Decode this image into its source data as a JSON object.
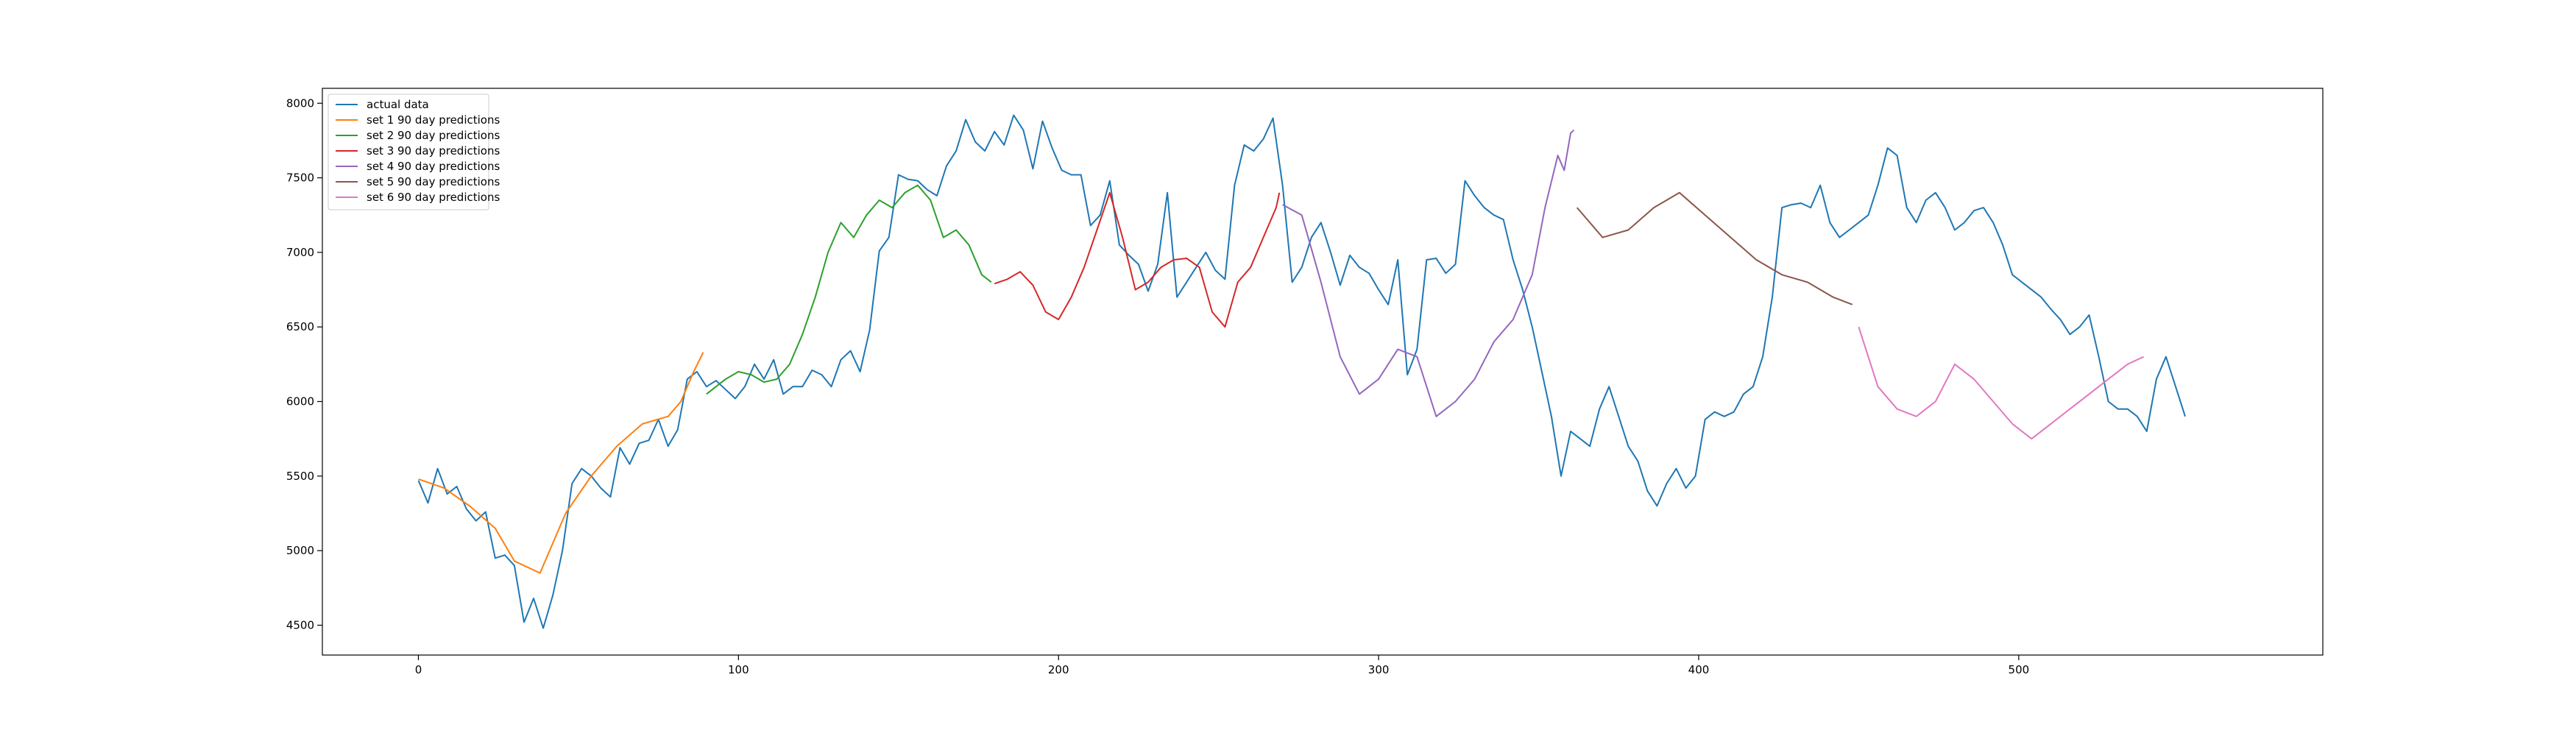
{
  "chart_data": {
    "type": "line",
    "title": "",
    "xlabel": "",
    "ylabel": "",
    "xlim": [
      -30,
      595
    ],
    "ylim": [
      4300,
      8100
    ],
    "xticks": [
      0,
      100,
      200,
      300,
      400,
      500
    ],
    "yticks": [
      4500,
      5000,
      5500,
      6000,
      6500,
      7000,
      7500,
      8000
    ],
    "legend_position": "top-left",
    "grid": false,
    "series": [
      {
        "name": "actual data",
        "color": "#1f77b4",
        "points": [
          [
            0,
            5470
          ],
          [
            3,
            5320
          ],
          [
            6,
            5550
          ],
          [
            9,
            5380
          ],
          [
            12,
            5430
          ],
          [
            15,
            5280
          ],
          [
            18,
            5200
          ],
          [
            21,
            5260
          ],
          [
            24,
            4950
          ],
          [
            27,
            4970
          ],
          [
            30,
            4900
          ],
          [
            33,
            4520
          ],
          [
            36,
            4680
          ],
          [
            39,
            4480
          ],
          [
            42,
            4700
          ],
          [
            45,
            5000
          ],
          [
            48,
            5450
          ],
          [
            51,
            5550
          ],
          [
            54,
            5500
          ],
          [
            57,
            5420
          ],
          [
            60,
            5360
          ],
          [
            63,
            5690
          ],
          [
            66,
            5580
          ],
          [
            69,
            5720
          ],
          [
            72,
            5740
          ],
          [
            75,
            5880
          ],
          [
            78,
            5700
          ],
          [
            81,
            5810
          ],
          [
            84,
            6150
          ],
          [
            87,
            6200
          ],
          [
            90,
            6100
          ],
          [
            93,
            6140
          ],
          [
            96,
            6080
          ],
          [
            99,
            6020
          ],
          [
            102,
            6100
          ],
          [
            105,
            6250
          ],
          [
            108,
            6150
          ],
          [
            111,
            6280
          ],
          [
            114,
            6050
          ],
          [
            117,
            6100
          ],
          [
            120,
            6100
          ],
          [
            123,
            6210
          ],
          [
            126,
            6180
          ],
          [
            129,
            6100
          ],
          [
            132,
            6280
          ],
          [
            135,
            6340
          ],
          [
            138,
            6200
          ],
          [
            141,
            6480
          ],
          [
            144,
            7010
          ],
          [
            147,
            7100
          ],
          [
            150,
            7520
          ],
          [
            153,
            7490
          ],
          [
            156,
            7480
          ],
          [
            159,
            7420
          ],
          [
            162,
            7380
          ],
          [
            165,
            7580
          ],
          [
            168,
            7680
          ],
          [
            171,
            7890
          ],
          [
            174,
            7740
          ],
          [
            177,
            7680
          ],
          [
            180,
            7810
          ],
          [
            183,
            7720
          ],
          [
            186,
            7920
          ],
          [
            189,
            7820
          ],
          [
            192,
            7560
          ],
          [
            195,
            7880
          ],
          [
            198,
            7700
          ],
          [
            201,
            7550
          ],
          [
            204,
            7520
          ],
          [
            207,
            7520
          ],
          [
            210,
            7180
          ],
          [
            213,
            7250
          ],
          [
            216,
            7480
          ],
          [
            219,
            7050
          ],
          [
            222,
            6980
          ],
          [
            225,
            6920
          ],
          [
            228,
            6740
          ],
          [
            231,
            6920
          ],
          [
            234,
            7400
          ],
          [
            237,
            6700
          ],
          [
            240,
            6800
          ],
          [
            243,
            6900
          ],
          [
            246,
            7000
          ],
          [
            249,
            6880
          ],
          [
            252,
            6820
          ],
          [
            255,
            7450
          ],
          [
            258,
            7720
          ],
          [
            261,
            7680
          ],
          [
            264,
            7760
          ],
          [
            267,
            7900
          ],
          [
            270,
            7450
          ],
          [
            273,
            6800
          ],
          [
            276,
            6900
          ],
          [
            279,
            7100
          ],
          [
            282,
            7200
          ],
          [
            285,
            7000
          ],
          [
            288,
            6780
          ],
          [
            291,
            6980
          ],
          [
            294,
            6900
          ],
          [
            297,
            6860
          ],
          [
            300,
            6750
          ],
          [
            303,
            6650
          ],
          [
            306,
            6950
          ],
          [
            309,
            6180
          ],
          [
            312,
            6350
          ],
          [
            315,
            6950
          ],
          [
            318,
            6960
          ],
          [
            321,
            6860
          ],
          [
            324,
            6920
          ],
          [
            327,
            7480
          ],
          [
            330,
            7380
          ],
          [
            333,
            7300
          ],
          [
            336,
            7250
          ],
          [
            339,
            7220
          ],
          [
            342,
            6950
          ],
          [
            345,
            6750
          ],
          [
            348,
            6500
          ],
          [
            351,
            6200
          ],
          [
            354,
            5900
          ],
          [
            357,
            5500
          ],
          [
            360,
            5800
          ],
          [
            363,
            5750
          ],
          [
            366,
            5700
          ],
          [
            369,
            5950
          ],
          [
            372,
            6100
          ],
          [
            375,
            5900
          ],
          [
            378,
            5700
          ],
          [
            381,
            5600
          ],
          [
            384,
            5400
          ],
          [
            387,
            5300
          ],
          [
            390,
            5450
          ],
          [
            393,
            5550
          ],
          [
            396,
            5420
          ],
          [
            399,
            5500
          ],
          [
            402,
            5880
          ],
          [
            405,
            5930
          ],
          [
            408,
            5900
          ],
          [
            411,
            5930
          ],
          [
            414,
            6050
          ],
          [
            417,
            6100
          ],
          [
            420,
            6300
          ],
          [
            423,
            6700
          ],
          [
            426,
            7300
          ],
          [
            429,
            7320
          ],
          [
            432,
            7330
          ],
          [
            435,
            7300
          ],
          [
            438,
            7450
          ],
          [
            441,
            7200
          ],
          [
            444,
            7100
          ],
          [
            447,
            7150
          ],
          [
            450,
            7200
          ],
          [
            453,
            7250
          ],
          [
            456,
            7450
          ],
          [
            459,
            7700
          ],
          [
            462,
            7650
          ],
          [
            465,
            7300
          ],
          [
            468,
            7200
          ],
          [
            471,
            7350
          ],
          [
            474,
            7400
          ],
          [
            477,
            7300
          ],
          [
            480,
            7150
          ],
          [
            483,
            7200
          ],
          [
            486,
            7280
          ],
          [
            489,
            7300
          ],
          [
            492,
            7200
          ],
          [
            495,
            7050
          ],
          [
            498,
            6850
          ],
          [
            501,
            6800
          ],
          [
            504,
            6750
          ],
          [
            507,
            6700
          ],
          [
            510,
            6620
          ],
          [
            513,
            6550
          ],
          [
            516,
            6450
          ],
          [
            519,
            6500
          ],
          [
            522,
            6580
          ],
          [
            525,
            6300
          ],
          [
            528,
            6000
          ],
          [
            531,
            5950
          ],
          [
            534,
            5950
          ],
          [
            537,
            5900
          ],
          [
            540,
            5800
          ],
          [
            543,
            6150
          ],
          [
            546,
            6300
          ],
          [
            549,
            6100
          ],
          [
            552,
            5900
          ]
        ]
      },
      {
        "name": "set 1 90 day predictions",
        "color": "#ff7f0e",
        "points": [
          [
            0,
            5480
          ],
          [
            8,
            5420
          ],
          [
            16,
            5300
          ],
          [
            24,
            5150
          ],
          [
            30,
            4930
          ],
          [
            38,
            4850
          ],
          [
            46,
            5250
          ],
          [
            54,
            5500
          ],
          [
            62,
            5700
          ],
          [
            70,
            5850
          ],
          [
            78,
            5900
          ],
          [
            82,
            6000
          ],
          [
            86,
            6200
          ],
          [
            89,
            6330
          ]
        ]
      },
      {
        "name": "set 2 90 day predictions",
        "color": "#2ca02c",
        "points": [
          [
            90,
            6050
          ],
          [
            96,
            6150
          ],
          [
            100,
            6200
          ],
          [
            104,
            6180
          ],
          [
            108,
            6130
          ],
          [
            112,
            6150
          ],
          [
            116,
            6250
          ],
          [
            120,
            6450
          ],
          [
            124,
            6700
          ],
          [
            128,
            7000
          ],
          [
            132,
            7200
          ],
          [
            136,
            7100
          ],
          [
            140,
            7250
          ],
          [
            144,
            7350
          ],
          [
            148,
            7300
          ],
          [
            152,
            7400
          ],
          [
            156,
            7450
          ],
          [
            160,
            7350
          ],
          [
            164,
            7100
          ],
          [
            168,
            7150
          ],
          [
            172,
            7050
          ],
          [
            176,
            6850
          ],
          [
            179,
            6800
          ]
        ]
      },
      {
        "name": "set 3 90 day predictions",
        "color": "#d62728",
        "points": [
          [
            180,
            6790
          ],
          [
            184,
            6820
          ],
          [
            188,
            6870
          ],
          [
            192,
            6780
          ],
          [
            196,
            6600
          ],
          [
            200,
            6550
          ],
          [
            204,
            6700
          ],
          [
            208,
            6900
          ],
          [
            212,
            7150
          ],
          [
            216,
            7400
          ],
          [
            220,
            7100
          ],
          [
            224,
            6750
          ],
          [
            228,
            6800
          ],
          [
            232,
            6900
          ],
          [
            236,
            6950
          ],
          [
            240,
            6960
          ],
          [
            244,
            6900
          ],
          [
            248,
            6600
          ],
          [
            252,
            6500
          ],
          [
            256,
            6800
          ],
          [
            260,
            6900
          ],
          [
            264,
            7100
          ],
          [
            268,
            7300
          ],
          [
            269,
            7400
          ]
        ]
      },
      {
        "name": "set 4 90 day predictions",
        "color": "#9467bd",
        "points": [
          [
            270,
            7320
          ],
          [
            276,
            7250
          ],
          [
            282,
            6800
          ],
          [
            288,
            6300
          ],
          [
            294,
            6050
          ],
          [
            300,
            6150
          ],
          [
            306,
            6350
          ],
          [
            312,
            6300
          ],
          [
            318,
            5900
          ],
          [
            324,
            6000
          ],
          [
            330,
            6150
          ],
          [
            336,
            6400
          ],
          [
            342,
            6550
          ],
          [
            348,
            6850
          ],
          [
            352,
            7300
          ],
          [
            356,
            7650
          ],
          [
            358,
            7550
          ],
          [
            360,
            7800
          ],
          [
            361,
            7820
          ]
        ]
      },
      {
        "name": "set 5 90 day predictions",
        "color": "#8c564b",
        "points": [
          [
            362,
            7300
          ],
          [
            370,
            7100
          ],
          [
            378,
            7150
          ],
          [
            386,
            7300
          ],
          [
            394,
            7400
          ],
          [
            402,
            7250
          ],
          [
            410,
            7100
          ],
          [
            418,
            6950
          ],
          [
            426,
            6850
          ],
          [
            434,
            6800
          ],
          [
            442,
            6700
          ],
          [
            448,
            6650
          ]
        ]
      },
      {
        "name": "set 6 90 day predictions",
        "color": "#e377c2",
        "points": [
          [
            450,
            6500
          ],
          [
            456,
            6100
          ],
          [
            462,
            5950
          ],
          [
            468,
            5900
          ],
          [
            474,
            6000
          ],
          [
            480,
            6250
          ],
          [
            486,
            6150
          ],
          [
            492,
            6000
          ],
          [
            498,
            5850
          ],
          [
            504,
            5750
          ],
          [
            510,
            5850
          ],
          [
            516,
            5950
          ],
          [
            522,
            6050
          ],
          [
            528,
            6150
          ],
          [
            534,
            6250
          ],
          [
            539,
            6300
          ]
        ]
      }
    ]
  }
}
